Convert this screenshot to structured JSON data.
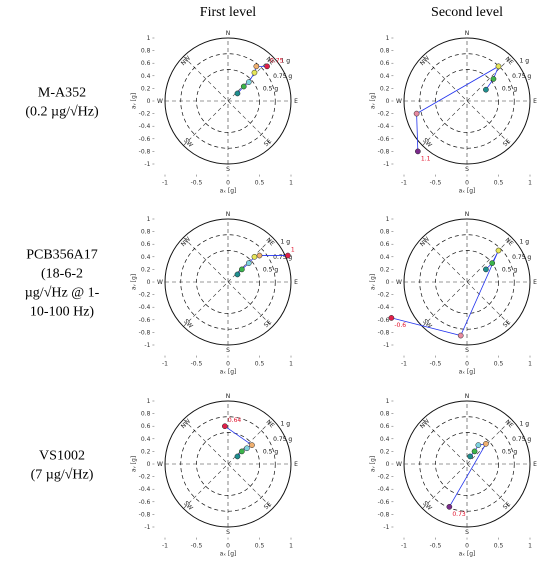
{
  "column_titles": [
    "First level",
    "Second level"
  ],
  "row_labels": [
    [
      "M-A352",
      "(0.2 µg/√Hz)"
    ],
    [
      "PCB356A17",
      "(18-6-2",
      "µg/√Hz @ 1-",
      "10-100 Hz)"
    ],
    [
      "VS1002",
      "(7 µg/√Hz)"
    ]
  ],
  "chart_data": [
    {
      "type": "scatter",
      "xlabel": "aₓ [g]",
      "ylabel": "aᵧ [g]",
      "xlim": [
        -1.2,
        1.2
      ],
      "ylim": [
        -1.2,
        1.2
      ],
      "xticks": [
        -1,
        -0.5,
        0,
        0.5,
        1
      ],
      "yticks": [
        -1,
        -0.8,
        -0.6,
        -0.4,
        -0.2,
        0,
        0.2,
        0.4,
        0.6,
        0.8,
        1
      ],
      "directions": [
        "N",
        "NE",
        "E",
        "SE",
        "S",
        "SW",
        "W",
        "NW"
      ],
      "rings": [
        {
          "value": 1,
          "label": "1 g"
        },
        {
          "value": 0.75,
          "label": "0.75 g"
        },
        {
          "value": 0.5,
          "label": "0.5 g"
        }
      ],
      "line_color": "#2233ee",
      "x": [
        0.15,
        0.25,
        0.33,
        0.42,
        0.45,
        0.62
      ],
      "values": [
        0.12,
        0.23,
        0.3,
        0.45,
        0.55,
        0.55
      ],
      "colors": [
        "#1f8f8f",
        "#3cb44b",
        "#7fd3e0",
        "#e6e65a",
        "#f0b070",
        "#e0204a"
      ],
      "point_labels": [
        null,
        null,
        null,
        null,
        null,
        "0.75"
      ]
    },
    {
      "type": "scatter",
      "xlabel": "aₓ [g]",
      "ylabel": "aᵧ [g]",
      "xlim": [
        -1.2,
        1.2
      ],
      "ylim": [
        -1.2,
        1.2
      ],
      "xticks": [
        -1,
        -0.5,
        0,
        0.5,
        1
      ],
      "yticks": [
        -1,
        -0.8,
        -0.6,
        -0.4,
        -0.2,
        0,
        0.2,
        0.4,
        0.6,
        0.8,
        1
      ],
      "directions": [
        "N",
        "NE",
        "E",
        "SE",
        "S",
        "SW",
        "W",
        "NW"
      ],
      "rings": [
        {
          "value": 1,
          "label": "1 g"
        },
        {
          "value": 0.75,
          "label": "0.75 g"
        },
        {
          "value": 0.5,
          "label": "0.5 g"
        }
      ],
      "line_color": "#2233ee",
      "x": [
        0.3,
        0.42,
        0.5,
        -0.8,
        -0.78
      ],
      "values": [
        0.18,
        0.35,
        0.55,
        -0.2,
        -0.8
      ],
      "colors": [
        "#1f8f8f",
        "#3cb44b",
        "#e6e65a",
        "#e88aa0",
        "#7a2a8a"
      ],
      "point_labels": [
        null,
        null,
        null,
        null,
        "1.1"
      ]
    },
    {
      "type": "scatter",
      "xlabel": "aₓ [g]",
      "ylabel": "aᵧ [g]",
      "xlim": [
        -1.2,
        1.2
      ],
      "ylim": [
        -1.2,
        1.2
      ],
      "xticks": [
        -1,
        -0.5,
        0,
        0.5,
        1
      ],
      "yticks": [
        -1,
        -0.8,
        -0.6,
        -0.4,
        -0.2,
        0,
        0.2,
        0.4,
        0.6,
        0.8,
        1
      ],
      "directions": [
        "N",
        "NE",
        "E",
        "SE",
        "S",
        "SW",
        "W",
        "NW"
      ],
      "rings": [
        {
          "value": 1,
          "label": "1 g"
        },
        {
          "value": 0.75,
          "label": "0.75 g"
        },
        {
          "value": 0.5,
          "label": "0.5 g"
        }
      ],
      "line_color": "#2233ee",
      "x": [
        0.15,
        0.22,
        0.33,
        0.42,
        0.5,
        0.95
      ],
      "values": [
        0.12,
        0.2,
        0.3,
        0.4,
        0.42,
        0.42
      ],
      "colors": [
        "#1f8f8f",
        "#3cb44b",
        "#7fd3e0",
        "#e6e65a",
        "#f0b070",
        "#e0204a"
      ],
      "point_labels": [
        null,
        null,
        null,
        null,
        null,
        "1"
      ]
    },
    {
      "type": "scatter",
      "xlabel": "aₓ [g]",
      "ylabel": "aᵧ [g]",
      "xlim": [
        -1.2,
        1.2
      ],
      "ylim": [
        -1.2,
        1.2
      ],
      "xticks": [
        -1,
        -0.5,
        0,
        0.5,
        1
      ],
      "yticks": [
        -1,
        -0.8,
        -0.6,
        -0.4,
        -0.2,
        0,
        0.2,
        0.4,
        0.6,
        0.8,
        1
      ],
      "directions": [
        "N",
        "NE",
        "E",
        "SE",
        "S",
        "SW",
        "W",
        "NW"
      ],
      "rings": [
        {
          "value": 1,
          "label": "1 g"
        },
        {
          "value": 0.75,
          "label": "0.75 g"
        },
        {
          "value": 0.5,
          "label": "0.5 g"
        }
      ],
      "line_color": "#2233ee",
      "x": [
        0.3,
        0.4,
        0.5,
        -0.1,
        -1.2
      ],
      "values": [
        0.2,
        0.3,
        0.5,
        -0.85,
        -0.57
      ],
      "colors": [
        "#1f8f8f",
        "#3cb44b",
        "#e6e65a",
        "#e88aa0",
        "#e0204a"
      ],
      "point_labels": [
        null,
        null,
        null,
        null,
        "-0.6"
      ]
    },
    {
      "type": "scatter",
      "xlabel": "aₓ [g]",
      "ylabel": "aᵧ [g]",
      "xlim": [
        -1.2,
        1.2
      ],
      "ylim": [
        -1.2,
        1.2
      ],
      "xticks": [
        -1,
        -0.5,
        0,
        0.5,
        1
      ],
      "yticks": [
        -1,
        -0.8,
        -0.6,
        -0.4,
        -0.2,
        0,
        0.2,
        0.4,
        0.6,
        0.8,
        1
      ],
      "directions": [
        "N",
        "NE",
        "E",
        "SE",
        "S",
        "SW",
        "W",
        "NW"
      ],
      "rings": [
        {
          "value": 1,
          "label": "1 g"
        },
        {
          "value": 0.75,
          "label": "0.75 g"
        },
        {
          "value": 0.5,
          "label": "0.5 g"
        }
      ],
      "line_color": "#2233ee",
      "x": [
        0.15,
        0.22,
        0.3,
        0.38,
        -0.05
      ],
      "values": [
        0.12,
        0.2,
        0.25,
        0.3,
        0.6
      ],
      "colors": [
        "#1f8f8f",
        "#3cb44b",
        "#7fd3e0",
        "#f0b070",
        "#e0204a"
      ],
      "point_labels": [
        null,
        null,
        null,
        null,
        "0.64"
      ]
    },
    {
      "type": "scatter",
      "xlabel": "aₓ [g]",
      "ylabel": "aᵧ [g]",
      "xlim": [
        -1.2,
        1.2
      ],
      "ylim": [
        -1.2,
        1.2
      ],
      "xticks": [
        -1,
        -0.5,
        0,
        0.5,
        1
      ],
      "yticks": [
        -1,
        -0.8,
        -0.6,
        -0.4,
        -0.2,
        0,
        0.2,
        0.4,
        0.6,
        0.8,
        1
      ],
      "directions": [
        "N",
        "NE",
        "E",
        "SE",
        "S",
        "SW",
        "W",
        "NW"
      ],
      "rings": [
        {
          "value": 1,
          "label": "1 g"
        },
        {
          "value": 0.75,
          "label": "0.75 g"
        },
        {
          "value": 0.5,
          "label": "0.5 g"
        }
      ],
      "line_color": "#2233ee",
      "x": [
        0.05,
        0.12,
        0.18,
        0.3,
        -0.28
      ],
      "values": [
        0.12,
        0.2,
        0.3,
        0.32,
        -0.68
      ],
      "colors": [
        "#1f8f8f",
        "#3cb44b",
        "#7fd3e0",
        "#f0b070",
        "#7a2a8a"
      ],
      "point_labels": [
        null,
        null,
        null,
        null,
        "0.73"
      ]
    }
  ]
}
